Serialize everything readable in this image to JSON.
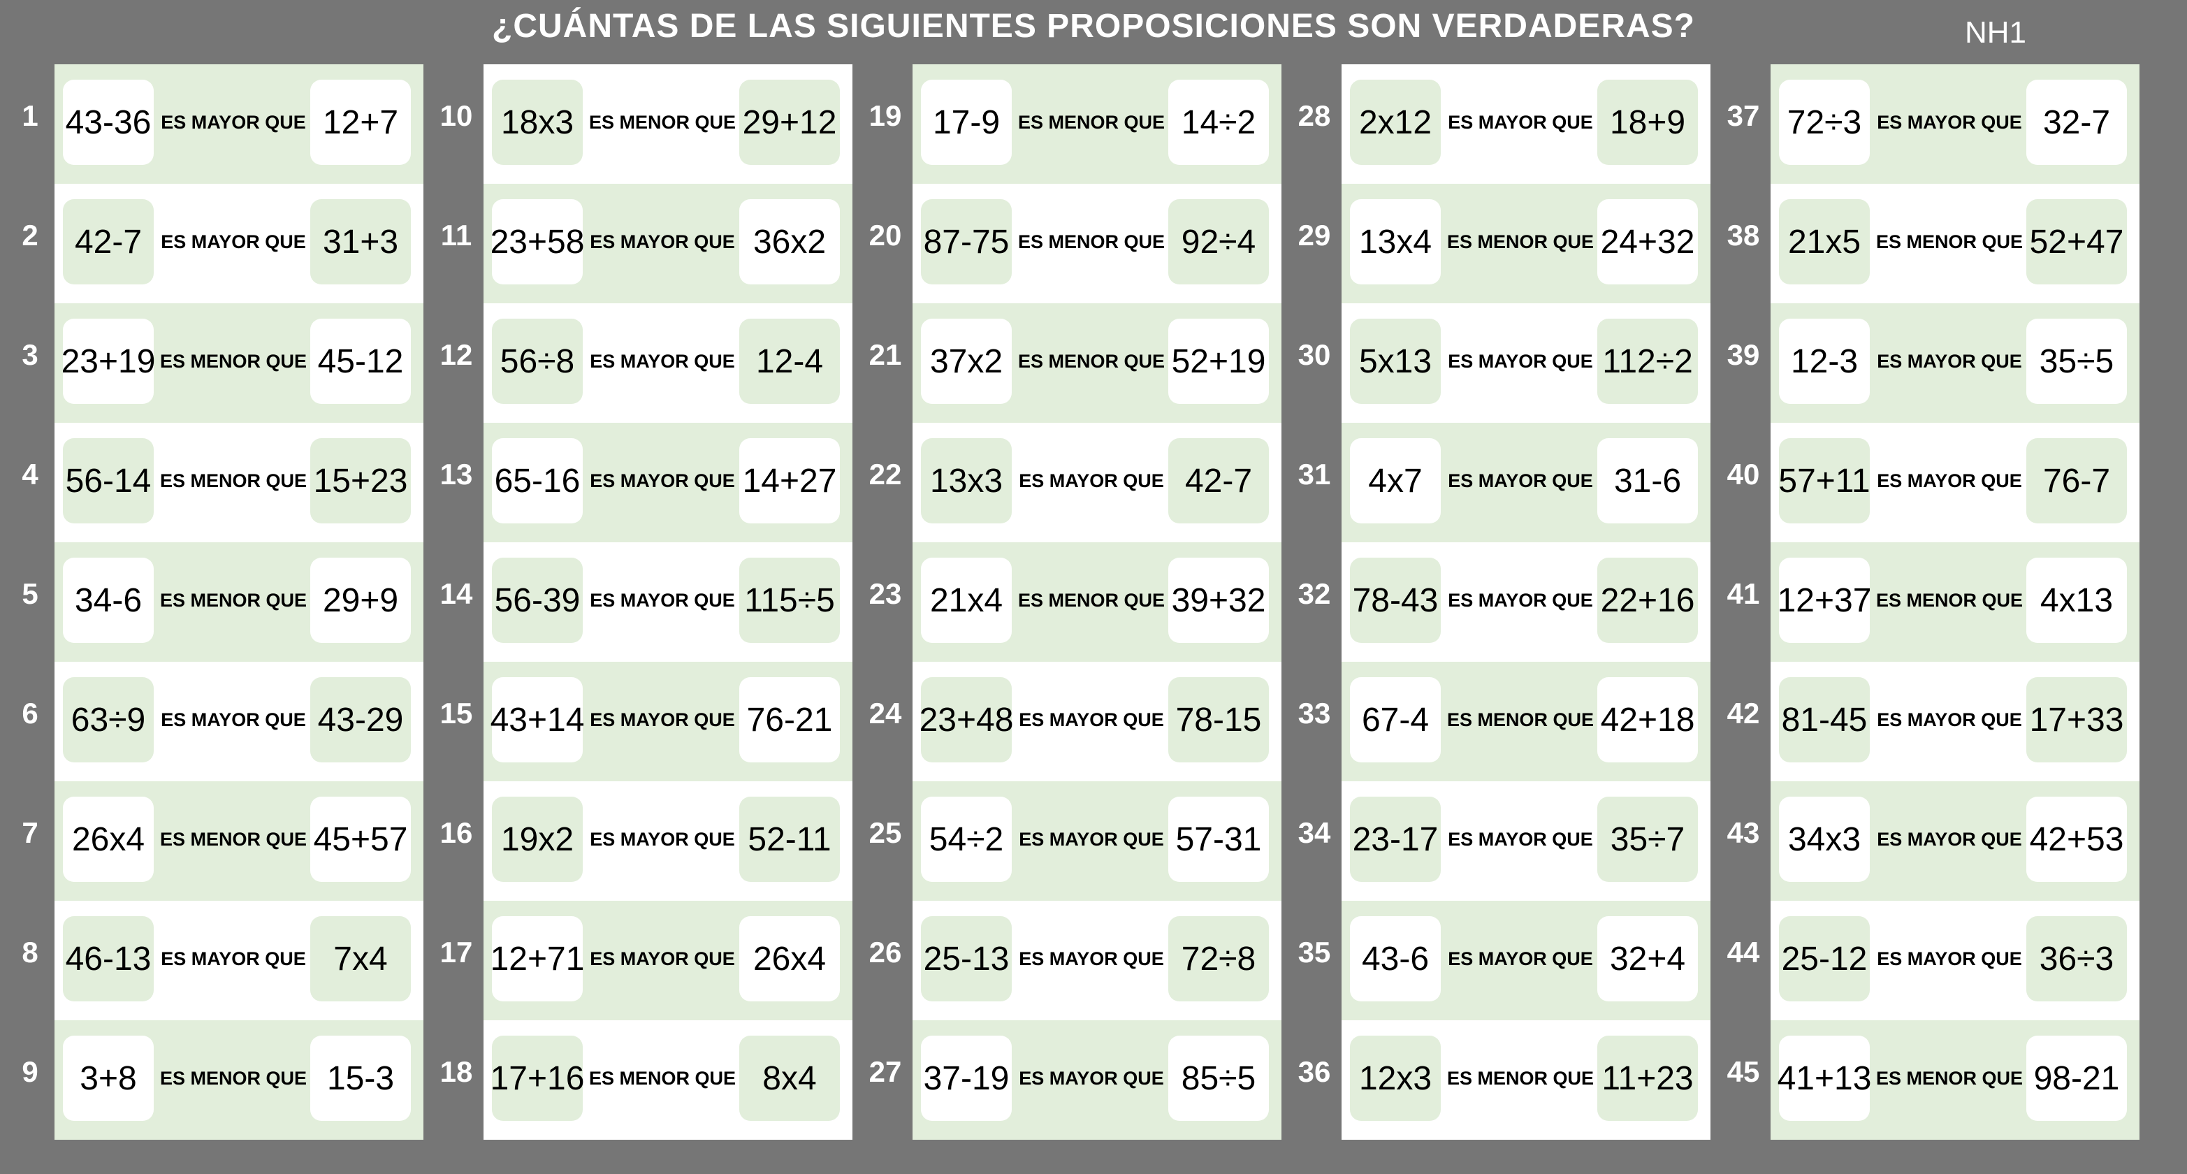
{
  "title": "¿CUÁNTAS DE LAS SIGUIENTES PROPOSICIONES SON VERDADERAS?",
  "code": "NH1",
  "colors": {
    "background": "#767676",
    "light_green": "#e2eedb",
    "white": "#ffffff"
  },
  "items": [
    {
      "n": "1",
      "left": "43-36",
      "rel": "ES MAYOR QUE",
      "right": "12+7"
    },
    {
      "n": "2",
      "left": "42-7",
      "rel": "ES MAYOR QUE",
      "right": "31+3"
    },
    {
      "n": "3",
      "left": "23+19",
      "rel": "ES MENOR QUE",
      "right": "45-12"
    },
    {
      "n": "4",
      "left": "56-14",
      "rel": "ES MENOR QUE",
      "right": "15+23"
    },
    {
      "n": "5",
      "left": "34-6",
      "rel": "ES MENOR QUE",
      "right": "29+9"
    },
    {
      "n": "6",
      "left": "63÷9",
      "rel": "ES MAYOR QUE",
      "right": "43-29"
    },
    {
      "n": "7",
      "left": "26x4",
      "rel": "ES MENOR QUE",
      "right": "45+57"
    },
    {
      "n": "8",
      "left": "46-13",
      "rel": "ES MAYOR QUE",
      "right": "7x4"
    },
    {
      "n": "9",
      "left": "3+8",
      "rel": "ES MENOR QUE",
      "right": "15-3"
    },
    {
      "n": "10",
      "left": "18x3",
      "rel": "ES MENOR QUE",
      "right": "29+12"
    },
    {
      "n": "11",
      "left": "23+58",
      "rel": "ES MAYOR QUE",
      "right": "36x2"
    },
    {
      "n": "12",
      "left": "56÷8",
      "rel": "ES MAYOR QUE",
      "right": "12-4"
    },
    {
      "n": "13",
      "left": "65-16",
      "rel": "ES MAYOR QUE",
      "right": "14+27"
    },
    {
      "n": "14",
      "left": "56-39",
      "rel": "ES MAYOR QUE",
      "right": "115÷5"
    },
    {
      "n": "15",
      "left": "43+14",
      "rel": "ES MAYOR QUE",
      "right": "76-21"
    },
    {
      "n": "16",
      "left": "19x2",
      "rel": "ES MAYOR QUE",
      "right": "52-11"
    },
    {
      "n": "17",
      "left": "12+71",
      "rel": "ES MAYOR QUE",
      "right": "26x4"
    },
    {
      "n": "18",
      "left": "17+16",
      "rel": "ES MENOR QUE",
      "right": "8x4"
    },
    {
      "n": "19",
      "left": "17-9",
      "rel": "ES MENOR QUE",
      "right": "14÷2"
    },
    {
      "n": "20",
      "left": "87-75",
      "rel": "ES MENOR QUE",
      "right": "92÷4"
    },
    {
      "n": "21",
      "left": "37x2",
      "rel": "ES MENOR QUE",
      "right": "52+19"
    },
    {
      "n": "22",
      "left": "13x3",
      "rel": "ES MAYOR QUE",
      "right": "42-7"
    },
    {
      "n": "23",
      "left": "21x4",
      "rel": "ES MENOR QUE",
      "right": "39+32"
    },
    {
      "n": "24",
      "left": "23+48",
      "rel": "ES MAYOR QUE",
      "right": "78-15"
    },
    {
      "n": "25",
      "left": "54÷2",
      "rel": "ES MAYOR QUE",
      "right": "57-31"
    },
    {
      "n": "26",
      "left": "25-13",
      "rel": "ES MAYOR QUE",
      "right": "72÷8"
    },
    {
      "n": "27",
      "left": "37-19",
      "rel": "ES MAYOR QUE",
      "right": "85÷5"
    },
    {
      "n": "28",
      "left": "2x12",
      "rel": "ES MAYOR QUE",
      "right": "18+9"
    },
    {
      "n": "29",
      "left": "13x4",
      "rel": "ES MENOR QUE",
      "right": "24+32"
    },
    {
      "n": "30",
      "left": "5x13",
      "rel": "ES MAYOR QUE",
      "right": "112÷2"
    },
    {
      "n": "31",
      "left": "4x7",
      "rel": "ES MAYOR QUE",
      "right": "31-6"
    },
    {
      "n": "32",
      "left": "78-43",
      "rel": "ES MAYOR QUE",
      "right": "22+16"
    },
    {
      "n": "33",
      "left": "67-4",
      "rel": "ES MENOR QUE",
      "right": "42+18"
    },
    {
      "n": "34",
      "left": "23-17",
      "rel": "ES MAYOR QUE",
      "right": "35÷7"
    },
    {
      "n": "35",
      "left": "43-6",
      "rel": "ES MAYOR QUE",
      "right": "32+4"
    },
    {
      "n": "36",
      "left": "12x3",
      "rel": "ES MENOR QUE",
      "right": "11+23"
    },
    {
      "n": "37",
      "left": "72÷3",
      "rel": "ES MAYOR QUE",
      "right": "32-7"
    },
    {
      "n": "38",
      "left": "21x5",
      "rel": "ES MENOR QUE",
      "right": "52+47"
    },
    {
      "n": "39",
      "left": "12-3",
      "rel": "ES MAYOR QUE",
      "right": "35÷5"
    },
    {
      "n": "40",
      "left": "57+11",
      "rel": "ES MAYOR QUE",
      "right": "76-7"
    },
    {
      "n": "41",
      "left": "12+37",
      "rel": "ES MENOR QUE",
      "right": "4x13"
    },
    {
      "n": "42",
      "left": "81-45",
      "rel": "ES MAYOR QUE",
      "right": "17+33"
    },
    {
      "n": "43",
      "left": "34x3",
      "rel": "ES MAYOR QUE",
      "right": "42+53"
    },
    {
      "n": "44",
      "left": "25-12",
      "rel": "ES MAYOR QUE",
      "right": "36÷3"
    },
    {
      "n": "45",
      "left": "41+13",
      "rel": "ES MENOR QUE",
      "right": "98-21"
    }
  ]
}
